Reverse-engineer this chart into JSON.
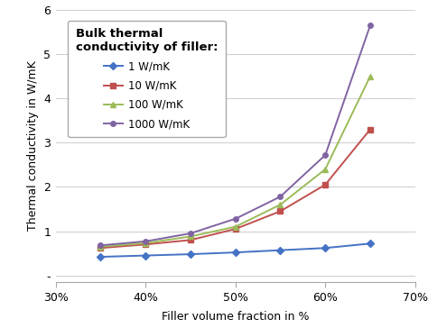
{
  "x": [
    0.35,
    0.4,
    0.45,
    0.5,
    0.55,
    0.6,
    0.65
  ],
  "series": {
    "1 W/mK": {
      "y": [
        0.42,
        0.45,
        0.48,
        0.52,
        0.57,
        0.62,
        0.72
      ],
      "color": "#4472C4",
      "marker": "D",
      "markersize": 4,
      "label": "1 W/mK"
    },
    "10 W/mK": {
      "y": [
        0.62,
        0.7,
        0.8,
        1.05,
        1.45,
        2.05,
        3.3
      ],
      "color": "#C0504D",
      "marker": "s",
      "markersize": 4,
      "label": "10 W/mK"
    },
    "100 W/mK": {
      "y": [
        0.65,
        0.73,
        0.88,
        1.1,
        1.6,
        2.4,
        4.5
      ],
      "color": "#9BBB59",
      "marker": "^",
      "markersize": 5,
      "label": "100 W/mK"
    },
    "1000 W/mK": {
      "y": [
        0.68,
        0.77,
        0.95,
        1.28,
        1.78,
        2.72,
        5.65
      ],
      "color": "#8064A2",
      "marker": "o",
      "markersize": 4,
      "label": "1000 W/mK"
    }
  },
  "xlabel": "Filler volume fraction in %",
  "ylabel": "Thermal conductivity in W/mK",
  "ylim": [
    -0.15,
    6
  ],
  "xlim": [
    0.3,
    0.7
  ],
  "yticks": [
    0,
    1,
    2,
    3,
    4,
    5,
    6
  ],
  "xticks": [
    0.3,
    0.4,
    0.5,
    0.6,
    0.7
  ],
  "legend_title": "Bulk thermal\nconductivity of filler:",
  "grid_color": "#D0D0D0",
  "background_color": "#FFFFFF",
  "linewidth": 1.4
}
